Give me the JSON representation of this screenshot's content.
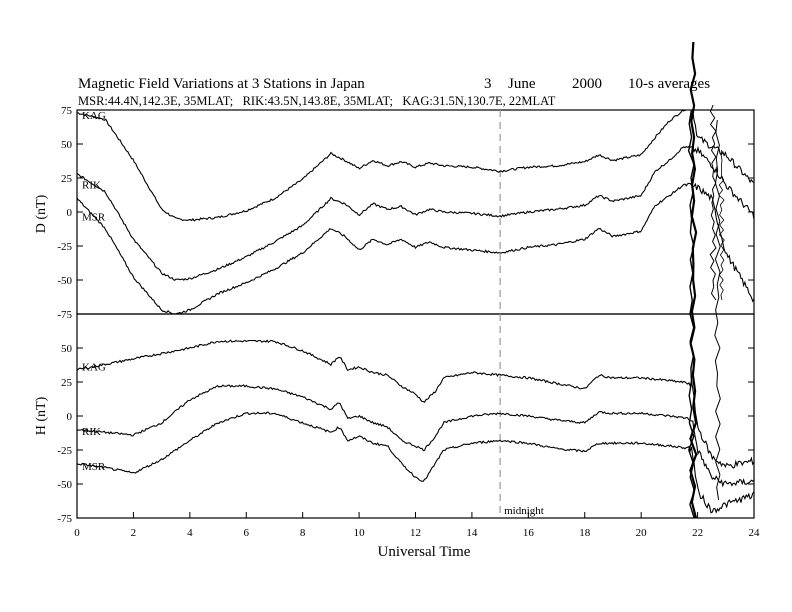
{
  "chart_data": {
    "type": "line",
    "title": "Magnetic Field Variations at 3 Stations in Japan",
    "date": {
      "day": "3",
      "month": "June",
      "year": "2000"
    },
    "averaging": "10-s averages",
    "subtitle": "MSR:44.4N,142.3E, 35MLAT;   RIK:43.5N,143.8E, 35MLAT;   KAG:31.5N,130.7E, 22MLAT",
    "xlabel": "Universal Time",
    "x_ticks": [
      "0",
      "2",
      "4",
      "6",
      "8",
      "10",
      "12",
      "14",
      "16",
      "18",
      "20",
      "22",
      "24"
    ],
    "xlim": [
      0,
      24
    ],
    "grid": false,
    "annotation": {
      "text": "midnight",
      "x": 15
    },
    "panels": [
      {
        "ylabel": "D (nT)",
        "ylim": [
          -75,
          75
        ],
        "y_ticks": [
          "75",
          "50",
          "25",
          "0",
          "-25",
          "-50",
          "-75"
        ],
        "series": [
          {
            "name": "KAG",
            "x": [
              0,
              1,
              2,
              3,
              3.5,
              4,
              5,
              6,
              7,
              8,
              9,
              9.5,
              10,
              10.5,
              11,
              11.5,
              12,
              12.5,
              13,
              14,
              15,
              16,
              17,
              18,
              18.5,
              19,
              20,
              20.5,
              21,
              21.5,
              21.8,
              22,
              22.5,
              23,
              24
            ],
            "values": [
              73,
              68,
              38,
              2,
              -5,
              -6,
              -4,
              1,
              10,
              24,
              43,
              38,
              32,
              38,
              34,
              37,
              33,
              36,
              34,
              33,
              30,
              33,
              34,
              37,
              42,
              38,
              42,
              55,
              67,
              75,
              78,
              55,
              48,
              42,
              20
            ]
          },
          {
            "name": "RIK",
            "x": [
              0,
              1,
              2,
              3,
              3.5,
              4,
              5,
              6,
              7,
              8,
              9,
              9.5,
              10,
              10.5,
              11,
              11.5,
              12,
              12.5,
              13,
              14,
              15,
              16,
              17,
              18,
              18.5,
              19,
              20,
              20.5,
              21,
              21.5,
              22,
              22.5,
              23,
              24
            ],
            "values": [
              28,
              15,
              -20,
              -45,
              -50,
              -49,
              -42,
              -33,
              -22,
              -10,
              10,
              6,
              -2,
              6,
              2,
              4,
              -2,
              2,
              0,
              -1,
              -3,
              0,
              2,
              5,
              12,
              8,
              12,
              30,
              38,
              48,
              45,
              35,
              20,
              -3
            ]
          },
          {
            "name": "MSR",
            "x": [
              0,
              1,
              2,
              3,
              3.5,
              4,
              5,
              6,
              7,
              8,
              9,
              9.5,
              10,
              10.5,
              11,
              11.5,
              12,
              12.5,
              13,
              14,
              15,
              16,
              17,
              18,
              18.5,
              19,
              20,
              20.5,
              21,
              21.5,
              22,
              22.5,
              23,
              24
            ],
            "values": [
              10,
              -12,
              -48,
              -72,
              -75,
              -72,
              -60,
              -52,
              -42,
              -30,
              -12,
              -18,
              -28,
              -20,
              -24,
              -20,
              -26,
              -22,
              -26,
              -28,
              -30,
              -26,
              -24,
              -20,
              -12,
              -18,
              -14,
              5,
              12,
              20,
              18,
              10,
              -30,
              -65
            ]
          }
        ]
      },
      {
        "ylabel": "H (nT)",
        "ylim": [
          -75,
          75
        ],
        "y_ticks": [
          "50",
          "25",
          "0",
          "-25",
          "-50",
          "-75"
        ],
        "series": [
          {
            "name": "KAG",
            "x": [
              0,
              1,
              2,
              3,
              4,
              5,
              6,
              7,
              8,
              9,
              9.3,
              9.6,
              10,
              10.5,
              11,
              11.5,
              12,
              12.3,
              12.7,
              13,
              14,
              15,
              16,
              17,
              18,
              18.5,
              19,
              20,
              21,
              21.8,
              22,
              22.5,
              23,
              24
            ],
            "values": [
              34,
              38,
              42,
              46,
              50,
              55,
              55,
              55,
              48,
              38,
              44,
              34,
              36,
              32,
              30,
              22,
              16,
              10,
              18,
              28,
              32,
              30,
              28,
              24,
              20,
              30,
              28,
              28,
              26,
              24,
              -8,
              -30,
              -37,
              -33
            ]
          },
          {
            "name": "RIK",
            "x": [
              0,
              1,
              2,
              3,
              4,
              5,
              6,
              7,
              8,
              9,
              9.3,
              9.6,
              10,
              10.5,
              11,
              11.5,
              12,
              12.3,
              12.7,
              13,
              14,
              15,
              16,
              17,
              18,
              18.5,
              19,
              20,
              21,
              21.8,
              22,
              22.5,
              23,
              24
            ],
            "values": [
              -10,
              -12,
              -14,
              -5,
              12,
              22,
              22,
              20,
              14,
              5,
              10,
              -2,
              0,
              -5,
              -8,
              -18,
              -22,
              -25,
              -15,
              -5,
              0,
              2,
              0,
              -3,
              -5,
              3,
              2,
              2,
              0,
              -2,
              -25,
              -45,
              -50,
              -48
            ]
          },
          {
            "name": "MSR",
            "x": [
              0,
              1,
              2,
              3,
              4,
              5,
              6,
              7,
              8,
              9,
              9.3,
              9.6,
              10,
              10.5,
              11,
              11.5,
              12,
              12.3,
              12.7,
              13,
              14,
              15,
              16,
              17,
              18,
              18.5,
              19,
              20,
              21,
              21.8,
              22,
              22.5,
              23,
              24
            ],
            "values": [
              -35,
              -38,
              -42,
              -32,
              -18,
              -5,
              2,
              2,
              -5,
              -12,
              -8,
              -18,
              -15,
              -20,
              -22,
              -35,
              -45,
              -48,
              -35,
              -25,
              -20,
              -18,
              -20,
              -24,
              -26,
              -20,
              -20,
              -20,
              -22,
              -24,
              -55,
              -70,
              -65,
              -58
            ]
          }
        ]
      }
    ]
  }
}
